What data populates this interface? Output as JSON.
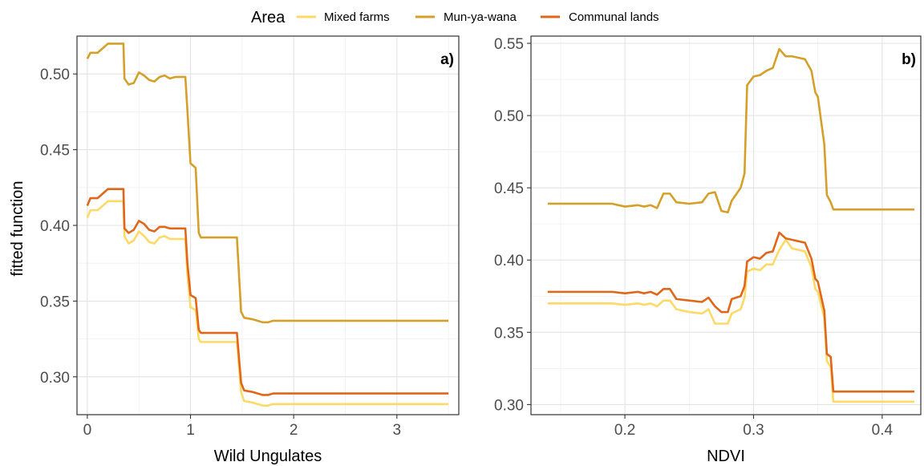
{
  "legend": {
    "title": "Area",
    "entries": [
      {
        "label": "Mixed farms",
        "color": "#FFD966"
      },
      {
        "label": "Mun-ya-wana",
        "color": "#D4A02A"
      },
      {
        "label": "Communal lands",
        "color": "#E0661A"
      }
    ]
  },
  "y_axis_label": "fitted function",
  "chart_data": [
    {
      "type": "line",
      "panel_tag": "a)",
      "xlabel": "Wild Ungulates",
      "ylabel": "fitted function",
      "xlim": [
        -0.1,
        3.6
      ],
      "ylim": [
        0.275,
        0.525
      ],
      "xticks": [
        0,
        1,
        2,
        3
      ],
      "xtick_labels": [
        "0",
        "1",
        "2",
        "3"
      ],
      "yticks": [
        0.3,
        0.35,
        0.4,
        0.45,
        0.5
      ],
      "ytick_labels": [
        "0.30",
        "0.35",
        "0.40",
        "0.45",
        "0.50"
      ],
      "grid": true,
      "series": [
        {
          "name": "Mixed farms",
          "color": "#FFD966",
          "x": [
            0.0,
            0.03,
            0.1,
            0.2,
            0.25,
            0.35,
            0.36,
            0.4,
            0.45,
            0.5,
            0.55,
            0.6,
            0.65,
            0.7,
            0.75,
            0.8,
            0.85,
            0.95,
            0.97,
            1.0,
            1.05,
            1.08,
            1.1,
            1.15,
            1.2,
            1.3,
            1.45,
            1.49,
            1.52,
            1.6,
            1.7,
            1.75,
            1.8,
            2.0,
            2.5,
            3.0,
            3.5
          ],
          "y": [
            0.405,
            0.41,
            0.41,
            0.416,
            0.416,
            0.416,
            0.393,
            0.388,
            0.39,
            0.396,
            0.393,
            0.389,
            0.388,
            0.392,
            0.393,
            0.391,
            0.391,
            0.391,
            0.367,
            0.346,
            0.344,
            0.325,
            0.323,
            0.323,
            0.323,
            0.323,
            0.323,
            0.29,
            0.284,
            0.283,
            0.281,
            0.281,
            0.282,
            0.282,
            0.282,
            0.282,
            0.282
          ]
        },
        {
          "name": "Mun-ya-wana",
          "color": "#D4A02A",
          "x": [
            0.0,
            0.03,
            0.1,
            0.2,
            0.25,
            0.35,
            0.36,
            0.4,
            0.45,
            0.5,
            0.55,
            0.6,
            0.65,
            0.7,
            0.75,
            0.8,
            0.85,
            0.95,
            0.97,
            1.0,
            1.05,
            1.08,
            1.1,
            1.15,
            1.2,
            1.3,
            1.45,
            1.49,
            1.52,
            1.6,
            1.7,
            1.75,
            1.8,
            2.0,
            2.5,
            3.0,
            3.5
          ],
          "y": [
            0.51,
            0.514,
            0.514,
            0.52,
            0.52,
            0.52,
            0.497,
            0.493,
            0.494,
            0.501,
            0.499,
            0.496,
            0.495,
            0.498,
            0.499,
            0.497,
            0.498,
            0.498,
            0.476,
            0.441,
            0.438,
            0.395,
            0.392,
            0.392,
            0.392,
            0.392,
            0.392,
            0.343,
            0.339,
            0.338,
            0.336,
            0.336,
            0.337,
            0.337,
            0.337,
            0.337,
            0.337
          ]
        },
        {
          "name": "Communal lands",
          "color": "#E0661A",
          "x": [
            0.0,
            0.03,
            0.1,
            0.2,
            0.25,
            0.35,
            0.36,
            0.4,
            0.45,
            0.5,
            0.55,
            0.6,
            0.65,
            0.7,
            0.75,
            0.8,
            0.85,
            0.95,
            0.97,
            1.0,
            1.05,
            1.08,
            1.1,
            1.15,
            1.2,
            1.3,
            1.45,
            1.49,
            1.52,
            1.6,
            1.7,
            1.75,
            1.8,
            2.0,
            2.5,
            3.0,
            3.5
          ],
          "y": [
            0.413,
            0.418,
            0.418,
            0.424,
            0.424,
            0.424,
            0.398,
            0.395,
            0.397,
            0.403,
            0.401,
            0.397,
            0.396,
            0.399,
            0.399,
            0.398,
            0.398,
            0.398,
            0.375,
            0.354,
            0.352,
            0.331,
            0.329,
            0.329,
            0.329,
            0.329,
            0.329,
            0.296,
            0.291,
            0.29,
            0.288,
            0.288,
            0.289,
            0.289,
            0.289,
            0.289,
            0.289
          ]
        }
      ]
    },
    {
      "type": "line",
      "panel_tag": "b)",
      "xlabel": "NDVI",
      "ylabel": "",
      "xlim": [
        0.127,
        0.43
      ],
      "ylim": [
        0.293,
        0.555
      ],
      "xticks": [
        0.2,
        0.3,
        0.4
      ],
      "xtick_labels": [
        "0.2",
        "0.3",
        "0.4"
      ],
      "yticks": [
        0.3,
        0.35,
        0.4,
        0.45,
        0.5,
        0.55
      ],
      "ytick_labels": [
        "0.30",
        "0.35",
        "0.40",
        "0.45",
        "0.50",
        "0.55"
      ],
      "grid": true,
      "series": [
        {
          "name": "Mixed farms",
          "color": "#FFD966",
          "x": [
            0.14,
            0.17,
            0.19,
            0.2,
            0.21,
            0.215,
            0.22,
            0.225,
            0.23,
            0.235,
            0.24,
            0.25,
            0.26,
            0.265,
            0.27,
            0.275,
            0.28,
            0.283,
            0.29,
            0.293,
            0.295,
            0.3,
            0.305,
            0.31,
            0.315,
            0.32,
            0.325,
            0.33,
            0.335,
            0.34,
            0.345,
            0.348,
            0.35,
            0.355,
            0.357,
            0.36,
            0.362,
            0.38,
            0.4,
            0.425
          ],
          "y": [
            0.37,
            0.37,
            0.37,
            0.369,
            0.37,
            0.369,
            0.37,
            0.368,
            0.372,
            0.372,
            0.366,
            0.364,
            0.363,
            0.366,
            0.356,
            0.356,
            0.356,
            0.363,
            0.366,
            0.374,
            0.392,
            0.394,
            0.393,
            0.397,
            0.397,
            0.407,
            0.414,
            0.408,
            0.407,
            0.406,
            0.395,
            0.38,
            0.378,
            0.36,
            0.33,
            0.326,
            0.302,
            0.302,
            0.302,
            0.302
          ]
        },
        {
          "name": "Mun-ya-wana",
          "color": "#D4A02A",
          "x": [
            0.14,
            0.17,
            0.19,
            0.2,
            0.21,
            0.215,
            0.22,
            0.225,
            0.23,
            0.235,
            0.24,
            0.25,
            0.26,
            0.265,
            0.27,
            0.275,
            0.28,
            0.283,
            0.29,
            0.293,
            0.295,
            0.3,
            0.305,
            0.31,
            0.315,
            0.32,
            0.325,
            0.33,
            0.335,
            0.34,
            0.345,
            0.348,
            0.35,
            0.355,
            0.357,
            0.36,
            0.362,
            0.38,
            0.4,
            0.425
          ],
          "y": [
            0.439,
            0.439,
            0.439,
            0.437,
            0.438,
            0.437,
            0.438,
            0.436,
            0.446,
            0.446,
            0.44,
            0.439,
            0.44,
            0.446,
            0.447,
            0.434,
            0.433,
            0.441,
            0.45,
            0.46,
            0.521,
            0.527,
            0.528,
            0.531,
            0.533,
            0.546,
            0.541,
            0.541,
            0.54,
            0.539,
            0.531,
            0.516,
            0.513,
            0.48,
            0.445,
            0.44,
            0.435,
            0.435,
            0.435,
            0.435
          ]
        },
        {
          "name": "Communal lands",
          "color": "#E0661A",
          "x": [
            0.14,
            0.17,
            0.19,
            0.2,
            0.21,
            0.215,
            0.22,
            0.225,
            0.23,
            0.235,
            0.24,
            0.25,
            0.26,
            0.265,
            0.27,
            0.275,
            0.28,
            0.283,
            0.29,
            0.293,
            0.295,
            0.3,
            0.305,
            0.31,
            0.315,
            0.32,
            0.325,
            0.33,
            0.335,
            0.34,
            0.345,
            0.348,
            0.35,
            0.355,
            0.357,
            0.36,
            0.362,
            0.38,
            0.4,
            0.425
          ],
          "y": [
            0.378,
            0.378,
            0.378,
            0.377,
            0.378,
            0.377,
            0.378,
            0.376,
            0.38,
            0.38,
            0.373,
            0.372,
            0.371,
            0.374,
            0.368,
            0.364,
            0.364,
            0.373,
            0.375,
            0.382,
            0.399,
            0.402,
            0.401,
            0.405,
            0.406,
            0.419,
            0.415,
            0.414,
            0.413,
            0.412,
            0.401,
            0.387,
            0.385,
            0.365,
            0.335,
            0.333,
            0.309,
            0.309,
            0.309,
            0.309
          ]
        }
      ]
    }
  ]
}
